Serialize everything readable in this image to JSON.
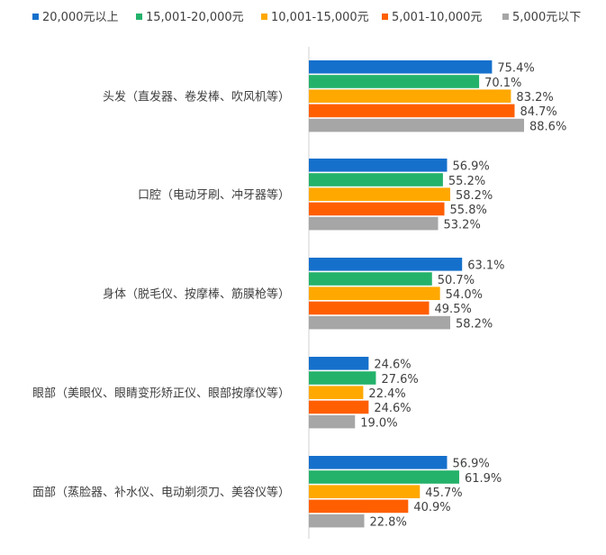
{
  "chart_data": {
    "type": "bar",
    "orientation": "horizontal",
    "categories": [
      "头发（直发器、卷发棒、吹风机等）",
      "口腔（电动牙刷、冲牙器等）",
      "身体（脱毛仪、按摩棒、筋膜枪等）",
      "眼部（美眼仪、眼睛变形矫正仪、眼部按摩仪等）",
      "面部（蒸脸器、补水仪、电动剃须刀、美容仪等）"
    ],
    "series": [
      {
        "name": "20,000元以上",
        "color": "#1570CC",
        "values": [
          75.4,
          56.9,
          63.1,
          24.6,
          56.9
        ]
      },
      {
        "name": "15,001-20,000元",
        "color": "#24B26B",
        "values": [
          70.1,
          55.2,
          50.7,
          27.6,
          61.9
        ]
      },
      {
        "name": "10,001-15,000元",
        "color": "#FFA800",
        "values": [
          83.2,
          58.2,
          54.0,
          22.4,
          45.7
        ]
      },
      {
        "name": "5,001-10,000元",
        "color": "#FF5F00",
        "values": [
          84.7,
          55.8,
          49.5,
          24.6,
          40.9
        ]
      },
      {
        "name": "5,000元以下",
        "color": "#A6A6A6",
        "values": [
          88.6,
          53.2,
          58.2,
          19.0,
          22.8
        ]
      }
    ],
    "value_suffix": "%",
    "xlim": [
      0,
      100
    ],
    "legend_position": "top",
    "grid": false
  }
}
